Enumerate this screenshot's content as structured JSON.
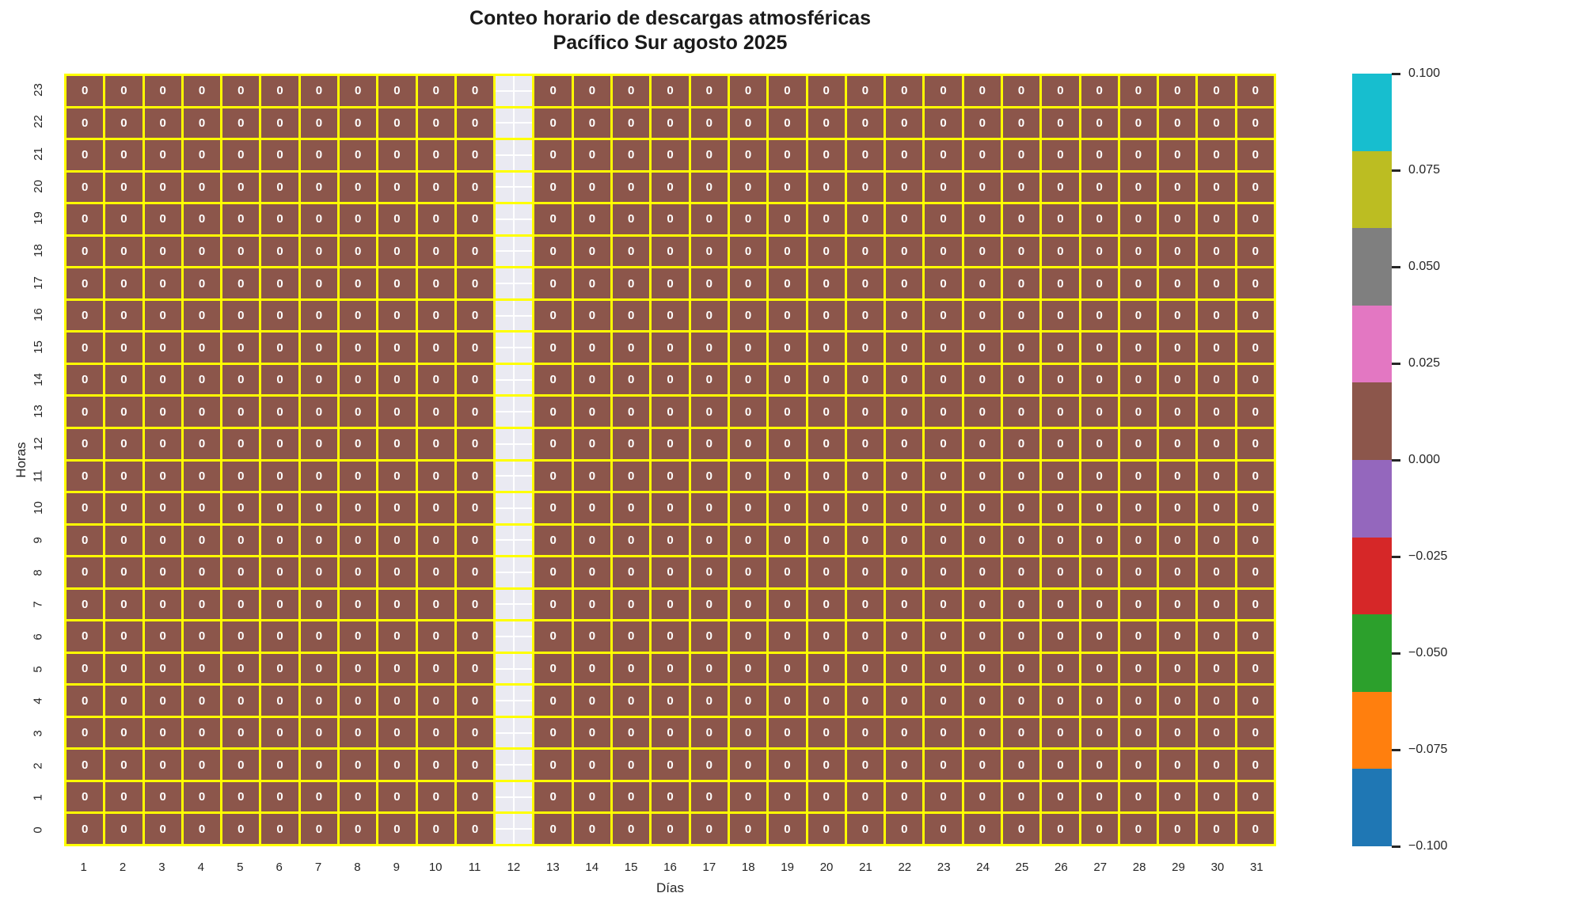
{
  "title": {
    "line1": "Conteo horario de descargas atmosféricas",
    "line2": "Pacífico Sur agosto 2025"
  },
  "chart_data": {
    "type": "heatmap",
    "title": "Conteo horario de descargas atmosféricas\nPacífico Sur agosto 2025",
    "xlabel": "Días",
    "ylabel": "Horas",
    "x_labels": [
      "1",
      "2",
      "3",
      "4",
      "5",
      "6",
      "7",
      "8",
      "9",
      "10",
      "11",
      "12",
      "13",
      "14",
      "15",
      "16",
      "17",
      "18",
      "19",
      "20",
      "21",
      "22",
      "23",
      "24",
      "25",
      "26",
      "27",
      "28",
      "29",
      "30",
      "31"
    ],
    "y_labels_top_to_bottom": [
      "23",
      "22",
      "21",
      "20",
      "19",
      "18",
      "17",
      "16",
      "15",
      "14",
      "13",
      "12",
      "11",
      "10",
      "9",
      "8",
      "7",
      "6",
      "5",
      "4",
      "3",
      "2",
      "1",
      "0"
    ],
    "missing_data_day": 12,
    "values_rows_top_to_bottom": [
      [
        0,
        0,
        0,
        0,
        0,
        0,
        0,
        0,
        0,
        0,
        0,
        null,
        0,
        0,
        0,
        0,
        0,
        0,
        0,
        0,
        0,
        0,
        0,
        0,
        0,
        0,
        0,
        0,
        0,
        0,
        0
      ],
      [
        0,
        0,
        0,
        0,
        0,
        0,
        0,
        0,
        0,
        0,
        0,
        null,
        0,
        0,
        0,
        0,
        0,
        0,
        0,
        0,
        0,
        0,
        0,
        0,
        0,
        0,
        0,
        0,
        0,
        0,
        0
      ],
      [
        0,
        0,
        0,
        0,
        0,
        0,
        0,
        0,
        0,
        0,
        0,
        null,
        0,
        0,
        0,
        0,
        0,
        0,
        0,
        0,
        0,
        0,
        0,
        0,
        0,
        0,
        0,
        0,
        0,
        0,
        0
      ],
      [
        0,
        0,
        0,
        0,
        0,
        0,
        0,
        0,
        0,
        0,
        0,
        null,
        0,
        0,
        0,
        0,
        0,
        0,
        0,
        0,
        0,
        0,
        0,
        0,
        0,
        0,
        0,
        0,
        0,
        0,
        0
      ],
      [
        0,
        0,
        0,
        0,
        0,
        0,
        0,
        0,
        0,
        0,
        0,
        null,
        0,
        0,
        0,
        0,
        0,
        0,
        0,
        0,
        0,
        0,
        0,
        0,
        0,
        0,
        0,
        0,
        0,
        0,
        0
      ],
      [
        0,
        0,
        0,
        0,
        0,
        0,
        0,
        0,
        0,
        0,
        0,
        null,
        0,
        0,
        0,
        0,
        0,
        0,
        0,
        0,
        0,
        0,
        0,
        0,
        0,
        0,
        0,
        0,
        0,
        0,
        0
      ],
      [
        0,
        0,
        0,
        0,
        0,
        0,
        0,
        0,
        0,
        0,
        0,
        null,
        0,
        0,
        0,
        0,
        0,
        0,
        0,
        0,
        0,
        0,
        0,
        0,
        0,
        0,
        0,
        0,
        0,
        0,
        0
      ],
      [
        0,
        0,
        0,
        0,
        0,
        0,
        0,
        0,
        0,
        0,
        0,
        null,
        0,
        0,
        0,
        0,
        0,
        0,
        0,
        0,
        0,
        0,
        0,
        0,
        0,
        0,
        0,
        0,
        0,
        0,
        0
      ],
      [
        0,
        0,
        0,
        0,
        0,
        0,
        0,
        0,
        0,
        0,
        0,
        null,
        0,
        0,
        0,
        0,
        0,
        0,
        0,
        0,
        0,
        0,
        0,
        0,
        0,
        0,
        0,
        0,
        0,
        0,
        0
      ],
      [
        0,
        0,
        0,
        0,
        0,
        0,
        0,
        0,
        0,
        0,
        0,
        null,
        0,
        0,
        0,
        0,
        0,
        0,
        0,
        0,
        0,
        0,
        0,
        0,
        0,
        0,
        0,
        0,
        0,
        0,
        0
      ],
      [
        0,
        0,
        0,
        0,
        0,
        0,
        0,
        0,
        0,
        0,
        0,
        null,
        0,
        0,
        0,
        0,
        0,
        0,
        0,
        0,
        0,
        0,
        0,
        0,
        0,
        0,
        0,
        0,
        0,
        0,
        0
      ],
      [
        0,
        0,
        0,
        0,
        0,
        0,
        0,
        0,
        0,
        0,
        0,
        null,
        0,
        0,
        0,
        0,
        0,
        0,
        0,
        0,
        0,
        0,
        0,
        0,
        0,
        0,
        0,
        0,
        0,
        0,
        0
      ],
      [
        0,
        0,
        0,
        0,
        0,
        0,
        0,
        0,
        0,
        0,
        0,
        null,
        0,
        0,
        0,
        0,
        0,
        0,
        0,
        0,
        0,
        0,
        0,
        0,
        0,
        0,
        0,
        0,
        0,
        0,
        0
      ],
      [
        0,
        0,
        0,
        0,
        0,
        0,
        0,
        0,
        0,
        0,
        0,
        null,
        0,
        0,
        0,
        0,
        0,
        0,
        0,
        0,
        0,
        0,
        0,
        0,
        0,
        0,
        0,
        0,
        0,
        0,
        0
      ],
      [
        0,
        0,
        0,
        0,
        0,
        0,
        0,
        0,
        0,
        0,
        0,
        null,
        0,
        0,
        0,
        0,
        0,
        0,
        0,
        0,
        0,
        0,
        0,
        0,
        0,
        0,
        0,
        0,
        0,
        0,
        0
      ],
      [
        0,
        0,
        0,
        0,
        0,
        0,
        0,
        0,
        0,
        0,
        0,
        null,
        0,
        0,
        0,
        0,
        0,
        0,
        0,
        0,
        0,
        0,
        0,
        0,
        0,
        0,
        0,
        0,
        0,
        0,
        0
      ],
      [
        0,
        0,
        0,
        0,
        0,
        0,
        0,
        0,
        0,
        0,
        0,
        null,
        0,
        0,
        0,
        0,
        0,
        0,
        0,
        0,
        0,
        0,
        0,
        0,
        0,
        0,
        0,
        0,
        0,
        0,
        0
      ],
      [
        0,
        0,
        0,
        0,
        0,
        0,
        0,
        0,
        0,
        0,
        0,
        null,
        0,
        0,
        0,
        0,
        0,
        0,
        0,
        0,
        0,
        0,
        0,
        0,
        0,
        0,
        0,
        0,
        0,
        0,
        0
      ],
      [
        0,
        0,
        0,
        0,
        0,
        0,
        0,
        0,
        0,
        0,
        0,
        null,
        0,
        0,
        0,
        0,
        0,
        0,
        0,
        0,
        0,
        0,
        0,
        0,
        0,
        0,
        0,
        0,
        0,
        0,
        0
      ],
      [
        0,
        0,
        0,
        0,
        0,
        0,
        0,
        0,
        0,
        0,
        0,
        null,
        0,
        0,
        0,
        0,
        0,
        0,
        0,
        0,
        0,
        0,
        0,
        0,
        0,
        0,
        0,
        0,
        0,
        0,
        0
      ],
      [
        0,
        0,
        0,
        0,
        0,
        0,
        0,
        0,
        0,
        0,
        0,
        null,
        0,
        0,
        0,
        0,
        0,
        0,
        0,
        0,
        0,
        0,
        0,
        0,
        0,
        0,
        0,
        0,
        0,
        0,
        0
      ],
      [
        0,
        0,
        0,
        0,
        0,
        0,
        0,
        0,
        0,
        0,
        0,
        null,
        0,
        0,
        0,
        0,
        0,
        0,
        0,
        0,
        0,
        0,
        0,
        0,
        0,
        0,
        0,
        0,
        0,
        0,
        0
      ],
      [
        0,
        0,
        0,
        0,
        0,
        0,
        0,
        0,
        0,
        0,
        0,
        null,
        0,
        0,
        0,
        0,
        0,
        0,
        0,
        0,
        0,
        0,
        0,
        0,
        0,
        0,
        0,
        0,
        0,
        0,
        0
      ],
      [
        0,
        0,
        0,
        0,
        0,
        0,
        0,
        0,
        0,
        0,
        0,
        null,
        0,
        0,
        0,
        0,
        0,
        0,
        0,
        0,
        0,
        0,
        0,
        0,
        0,
        0,
        0,
        0,
        0,
        0,
        0
      ]
    ],
    "colors": {
      "cell": "#8C564B",
      "nan_cell": "#EAEAF2",
      "grid_line": "#FFFF00",
      "annotation_text": "#FFFFFF"
    },
    "colorbar": {
      "vmin": -0.1,
      "vmax": 0.1,
      "tick_labels_top_to_bottom": [
        "0.100",
        "0.075",
        "0.050",
        "0.025",
        "0.000",
        "−0.025",
        "−0.050",
        "−0.075",
        "−0.100"
      ],
      "segments_top_to_bottom": [
        {
          "name": "cyan",
          "color": "#17BECF"
        },
        {
          "name": "olive",
          "color": "#BCBD22"
        },
        {
          "name": "gray",
          "color": "#7F7F7F"
        },
        {
          "name": "pink",
          "color": "#E377C2"
        },
        {
          "name": "brown",
          "color": "#8C564B"
        },
        {
          "name": "purple",
          "color": "#9467BD"
        },
        {
          "name": "red",
          "color": "#D62728"
        },
        {
          "name": "green",
          "color": "#2CA02C"
        },
        {
          "name": "orange",
          "color": "#FF7F0E"
        },
        {
          "name": "blue",
          "color": "#1F77B4"
        }
      ]
    },
    "grid": false,
    "legend_position": "right-colorbar"
  }
}
